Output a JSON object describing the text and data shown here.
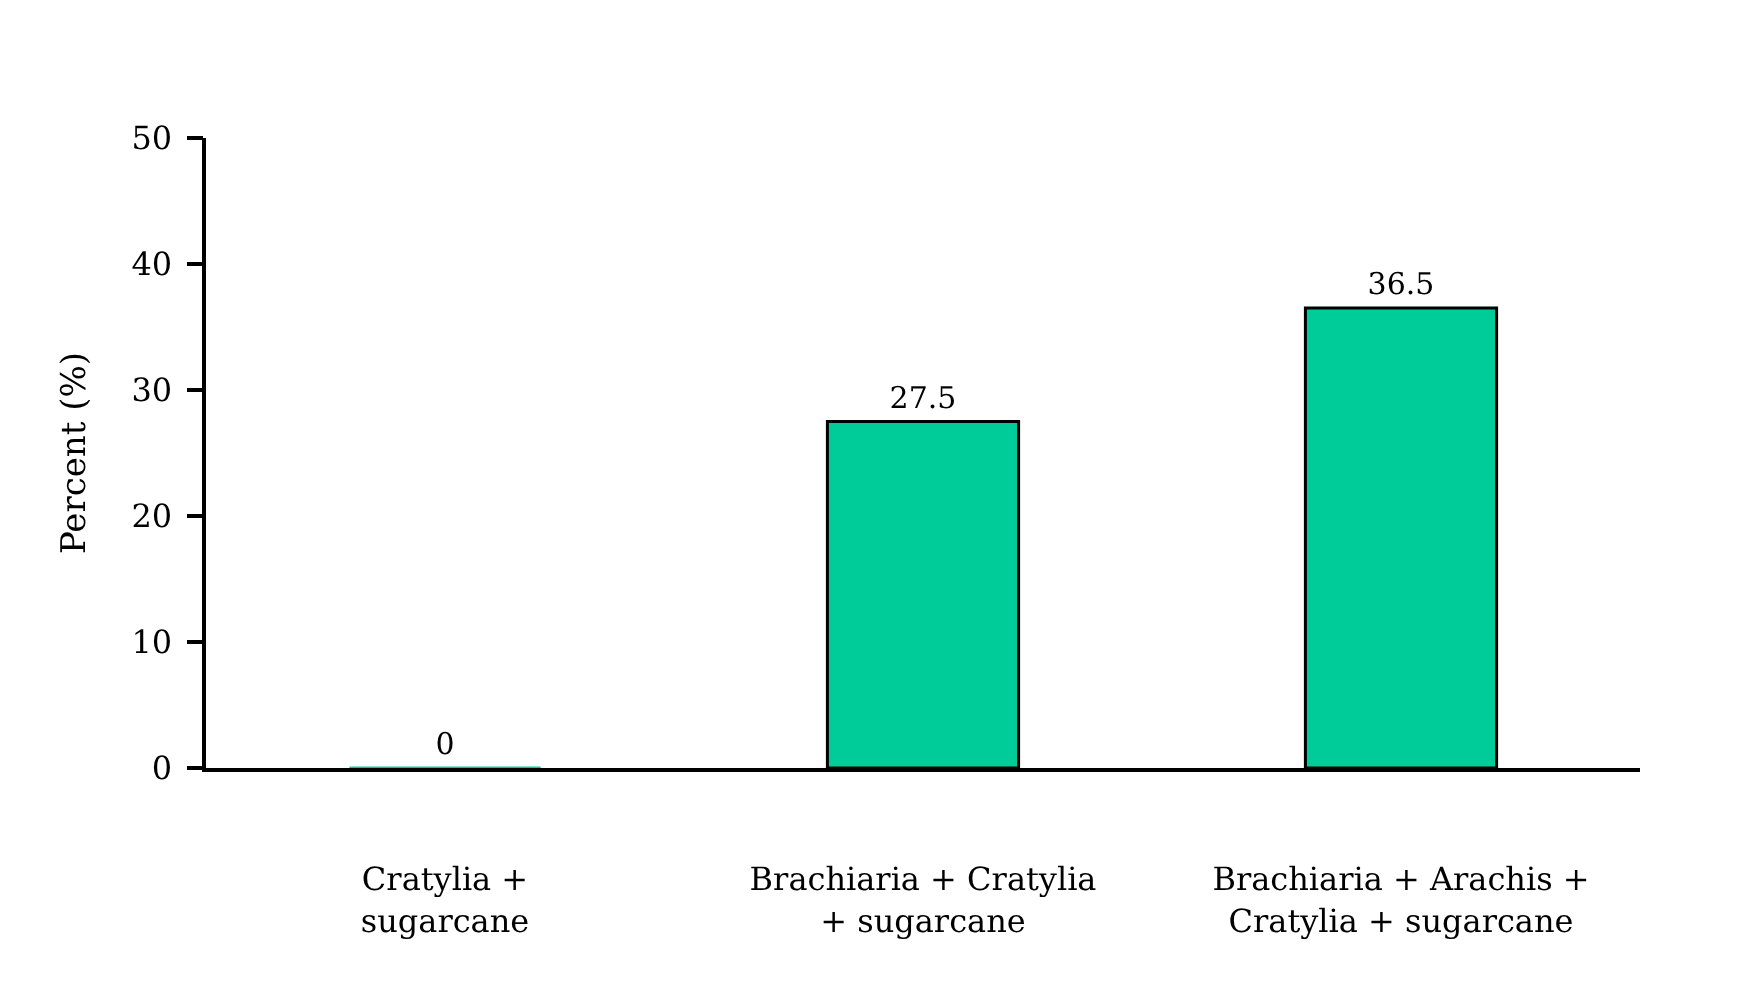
{
  "chart_data": {
    "type": "bar",
    "ylabel": "Percent (%)",
    "categories": [
      "Cratylia + sugarcane",
      "Brachiaria + Cratylia + sugarcane",
      "Brachiaria + Arachis + Cratylia + sugarcane"
    ],
    "values": [
      0,
      27.5,
      36.5
    ],
    "color": "#00cc99",
    "ylim": [
      0,
      50
    ],
    "yticks": [
      0,
      10,
      20,
      30,
      40,
      50
    ],
    "data_labels": true,
    "grid": false
  }
}
